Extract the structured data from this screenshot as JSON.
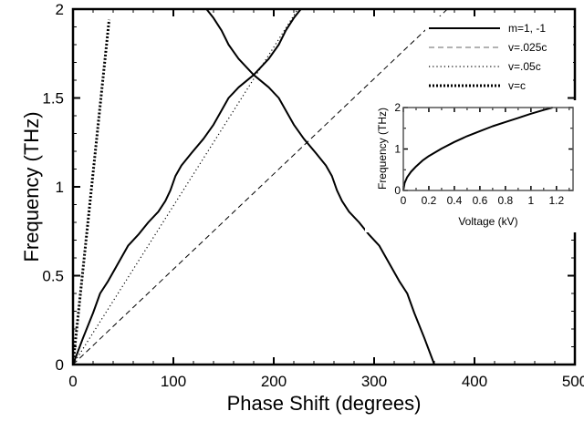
{
  "chart_data": [
    {
      "type": "line",
      "xlabel": "Phase Shift (degrees)",
      "ylabel": "Frequency (THz)",
      "xlim": [
        0,
        500
      ],
      "ylim": [
        0,
        2
      ],
      "xticks": [
        0,
        100,
        200,
        300,
        400,
        500
      ],
      "xtick_labels": [
        "0",
        "100",
        "200",
        "300",
        "400",
        "500"
      ],
      "yticks": [
        0,
        0.5,
        1,
        1.5,
        2
      ],
      "ytick_labels": [
        "0",
        "0.5",
        "1",
        "1.5",
        "2"
      ],
      "grid": false,
      "legend_position": "top-right",
      "series": [
        {
          "name": "m=1, -1",
          "style": "solid",
          "color": "#000000",
          "x": [
            0,
            10,
            20,
            27,
            35,
            45,
            55,
            65,
            75,
            85,
            92,
            97,
            102,
            108,
            118,
            130,
            140,
            147,
            155,
            165,
            180,
            195,
            205,
            212,
            220,
            227
          ],
          "y": [
            0,
            0.15,
            0.29,
            0.4,
            0.47,
            0.57,
            0.67,
            0.73,
            0.8,
            0.86,
            0.92,
            0.98,
            1.06,
            1.12,
            1.19,
            1.27,
            1.35,
            1.42,
            1.5,
            1.56,
            1.63,
            1.72,
            1.8,
            1.88,
            1.95,
            2.0
          ]
        },
        {
          "name": "m=1, -1",
          "style": "solid",
          "color": "#000000",
          "mirror_of_first_about": 360,
          "x": [
            360,
            350,
            340,
            333,
            325,
            315,
            305,
            295,
            285,
            275,
            268,
            263,
            258,
            252,
            242,
            230,
            220,
            213,
            205,
            195,
            180,
            165,
            155,
            148,
            140,
            133
          ],
          "y": [
            0,
            0.15,
            0.29,
            0.4,
            0.47,
            0.57,
            0.67,
            0.73,
            0.8,
            0.86,
            0.92,
            0.98,
            1.06,
            1.12,
            1.19,
            1.27,
            1.35,
            1.42,
            1.5,
            1.56,
            1.63,
            1.72,
            1.8,
            1.88,
            1.95,
            2.0
          ]
        },
        {
          "name": "v=.025c",
          "style": "dashed",
          "color": "#000000",
          "x": [
            0,
            373
          ],
          "y": [
            0,
            2
          ]
        },
        {
          "name": "v=.05c",
          "style": "dotted",
          "color": "#000000",
          "x": [
            0,
            224
          ],
          "y": [
            0,
            2
          ]
        },
        {
          "name": "v=c",
          "style": "thick-dotted",
          "color": "#000000",
          "x": [
            0,
            36
          ],
          "y": [
            0,
            1.94
          ]
        }
      ],
      "legend": [
        "m=1, -1",
        "v=.025c",
        "v=.05c",
        "v=c"
      ]
    },
    {
      "type": "line",
      "xlabel": "Voltage (kV)",
      "ylabel": "Frequency (THz)",
      "xlim": [
        0,
        1.33
      ],
      "ylim": [
        0,
        2
      ],
      "xticks": [
        0,
        0.2,
        0.4,
        0.6,
        0.8,
        1,
        1.2
      ],
      "xtick_labels": [
        "0",
        "0.2",
        "0.4",
        "0.6",
        "0.8",
        "1",
        "1.2"
      ],
      "yticks": [
        0,
        1,
        2
      ],
      "ytick_labels": [
        "0",
        "1",
        "2"
      ],
      "series": [
        {
          "style": "solid",
          "color": "#000000",
          "x": [
            0,
            0.01,
            0.03,
            0.06,
            0.1,
            0.15,
            0.2,
            0.3,
            0.4,
            0.5,
            0.6,
            0.7,
            0.8,
            0.9,
            1.0,
            1.1,
            1.17
          ],
          "y": [
            0,
            0.18,
            0.32,
            0.45,
            0.58,
            0.72,
            0.83,
            1.01,
            1.17,
            1.31,
            1.43,
            1.55,
            1.65,
            1.75,
            1.85,
            1.94,
            2.0
          ]
        }
      ]
    }
  ]
}
